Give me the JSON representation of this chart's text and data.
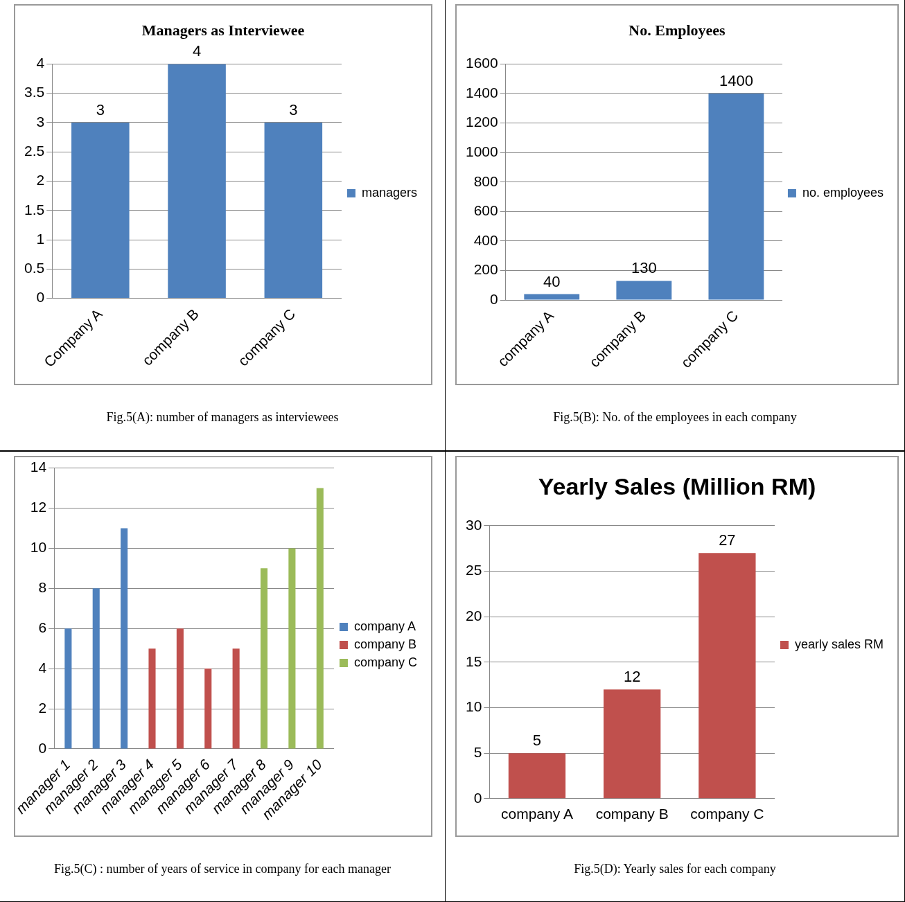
{
  "chart_data": [
    {
      "type": "bar",
      "title": "Managers as Interviewee",
      "categories": [
        "Company A",
        "company B",
        "company C"
      ],
      "series": [
        {
          "name": "managers",
          "color": "#4f81bd",
          "values": [
            3,
            4,
            3
          ]
        }
      ],
      "ylim": [
        0,
        4
      ],
      "yticks": [
        0,
        0.5,
        1,
        1.5,
        2,
        2.5,
        3,
        3.5,
        4
      ],
      "grid": "y",
      "legend": "right",
      "data_labels": true,
      "annotations": [
        "Fig.5(A): number of managers as interviewees"
      ]
    },
    {
      "type": "bar",
      "title": "No. Employees",
      "categories": [
        "company A",
        "company B",
        "company C"
      ],
      "series": [
        {
          "name": "no. employees",
          "color": "#4f81bd",
          "values": [
            40,
            130,
            1400
          ]
        }
      ],
      "ylim": [
        0,
        1600
      ],
      "yticks": [
        0,
        200,
        400,
        600,
        800,
        1000,
        1200,
        1400,
        1600
      ],
      "grid": "y",
      "legend": "right",
      "data_labels": true,
      "annotations": [
        "Fig.5(B): No. of the employees in each company"
      ]
    },
    {
      "type": "bar",
      "categories": [
        "manager 1",
        "manager 2",
        "manager 3",
        "manager 4",
        "manager 5",
        "manager 6",
        "manager 7",
        "manager 8",
        "manager 9",
        "manager 10"
      ],
      "series": [
        {
          "name": "company A",
          "color": "#4f81bd",
          "values": [
            6,
            8,
            11,
            null,
            null,
            null,
            null,
            null,
            null,
            null
          ]
        },
        {
          "name": "company B",
          "color": "#c0504d",
          "values": [
            null,
            null,
            null,
            5,
            6,
            4,
            5,
            null,
            null,
            null
          ]
        },
        {
          "name": "company C",
          "color": "#9bbb59",
          "values": [
            null,
            null,
            null,
            null,
            null,
            null,
            null,
            9,
            10,
            13
          ]
        }
      ],
      "ylim": [
        0,
        14
      ],
      "yticks": [
        0,
        2,
        4,
        6,
        8,
        10,
        12,
        14
      ],
      "grid": "y",
      "legend": "right",
      "annotations": [
        "Fig.5(C) : number of years of service in company for each manager"
      ]
    },
    {
      "type": "bar",
      "title": "Yearly Sales (Million RM)",
      "categories": [
        "company A",
        "company B",
        "company C"
      ],
      "series": [
        {
          "name": "yearly sales RM",
          "color": "#c0504d",
          "values": [
            5,
            12,
            27
          ]
        }
      ],
      "ylim": [
        0,
        30
      ],
      "yticks": [
        0,
        5,
        10,
        15,
        20,
        25,
        30
      ],
      "grid": "y",
      "legend": "right",
      "data_labels": true,
      "annotations": [
        "Fig.5(D): Yearly sales for each company"
      ]
    }
  ]
}
